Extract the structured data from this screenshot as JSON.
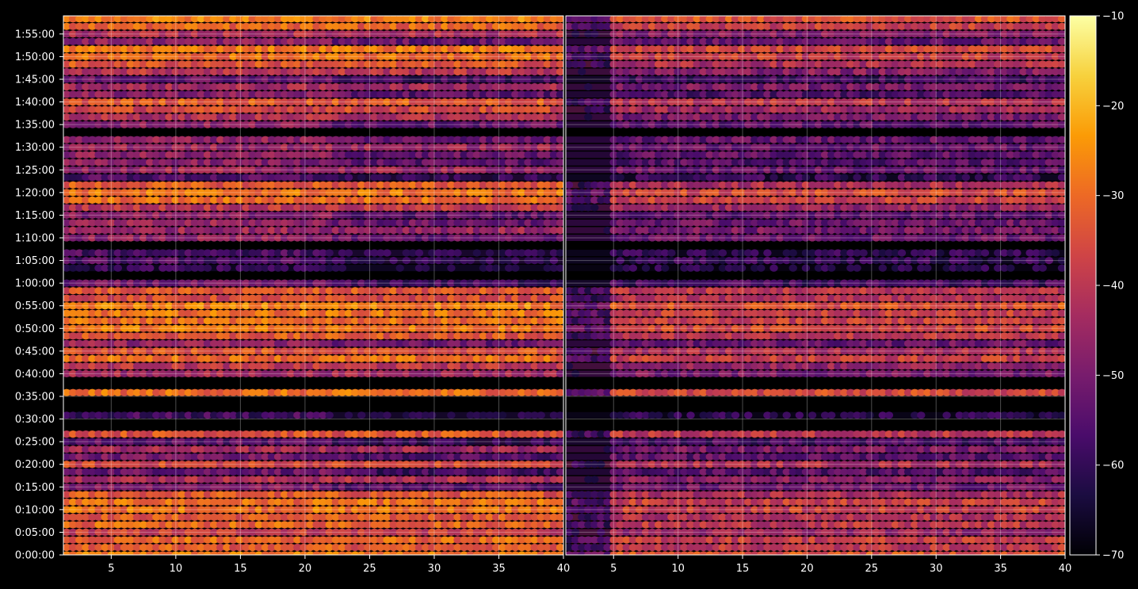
{
  "chart_data": [
    {
      "type": "heatmap",
      "panel": "left",
      "x_ticks": [
        5,
        10,
        15,
        20,
        25,
        30,
        35,
        40
      ],
      "y_ticks": [
        "0:00:00",
        "0:05:00",
        "0:10:00",
        "0:15:00",
        "0:20:00",
        "0:25:00",
        "0:30:00",
        "0:35:00",
        "0:40:00",
        "0:45:00",
        "0:50:00",
        "0:55:00",
        "1:00:00",
        "1:05:00",
        "1:10:00",
        "1:15:00",
        "1:20:00",
        "1:25:00",
        "1:30:00",
        "1:35:00",
        "1:40:00",
        "1:45:00",
        "1:50:00",
        "1:55:00"
      ],
      "xlim": [
        1.3,
        40
      ],
      "ylim_seconds": [
        0,
        7140
      ],
      "grid": true,
      "rows": [
        {
          "t": 0,
          "v": -28
        },
        {
          "t": 100,
          "v": -33
        },
        {
          "t": 200,
          "v": -31
        },
        {
          "t": 300,
          "v": -38
        },
        {
          "t": 400,
          "v": -31
        },
        {
          "t": 500,
          "v": -33
        },
        {
          "t": 600,
          "v": -29
        },
        {
          "t": 700,
          "v": -30
        },
        {
          "t": 800,
          "v": -33
        },
        {
          "t": 900,
          "v": -48
        },
        {
          "t": 1000,
          "v": -42
        },
        {
          "t": 1100,
          "v": -52
        },
        {
          "t": 1200,
          "v": -36
        },
        {
          "t": 1300,
          "v": -50
        },
        {
          "t": 1400,
          "v": -44
        },
        {
          "t": 1500,
          "v": -54
        },
        {
          "t": 1600,
          "v": -34
        },
        {
          "t": 1850,
          "v": -58
        },
        {
          "t": 2150,
          "v": -30
        },
        {
          "t": 2400,
          "v": -44
        },
        {
          "t": 2500,
          "v": -40
        },
        {
          "t": 2600,
          "v": -30
        },
        {
          "t": 2700,
          "v": -34
        },
        {
          "t": 2800,
          "v": -46
        },
        {
          "t": 2900,
          "v": -33
        },
        {
          "t": 3000,
          "v": -28
        },
        {
          "t": 3100,
          "v": -30
        },
        {
          "t": 3200,
          "v": -29
        },
        {
          "t": 3300,
          "v": -27
        },
        {
          "t": 3400,
          "v": -36
        },
        {
          "t": 3500,
          "v": -34
        },
        {
          "t": 3600,
          "v": -52
        },
        {
          "t": 3800,
          "v": -60
        },
        {
          "t": 3900,
          "v": -56
        },
        {
          "t": 4000,
          "v": -57
        },
        {
          "t": 4200,
          "v": -47
        },
        {
          "t": 4300,
          "v": -45
        },
        {
          "t": 4400,
          "v": -46
        },
        {
          "t": 4500,
          "v": -48
        },
        {
          "t": 4600,
          "v": -40
        },
        {
          "t": 4700,
          "v": -30
        },
        {
          "t": 4800,
          "v": -29
        },
        {
          "t": 4900,
          "v": -33
        },
        {
          "t": 5000,
          "v": -56
        },
        {
          "t": 5100,
          "v": -45
        },
        {
          "t": 5200,
          "v": -48
        },
        {
          "t": 5300,
          "v": -47
        },
        {
          "t": 5400,
          "v": -45
        },
        {
          "t": 5500,
          "v": -46
        },
        {
          "t": 5700,
          "v": -47
        },
        {
          "t": 5800,
          "v": -42
        },
        {
          "t": 5900,
          "v": -36
        },
        {
          "t": 6000,
          "v": -33
        },
        {
          "t": 6100,
          "v": -48
        },
        {
          "t": 6200,
          "v": -44
        },
        {
          "t": 6300,
          "v": -52
        },
        {
          "t": 6400,
          "v": -40
        },
        {
          "t": 6500,
          "v": -34
        },
        {
          "t": 6600,
          "v": -30
        },
        {
          "t": 6700,
          "v": -28
        },
        {
          "t": 6800,
          "v": -47
        },
        {
          "t": 6900,
          "v": -42
        },
        {
          "t": 7000,
          "v": -31
        },
        {
          "t": 7100,
          "v": -27
        }
      ]
    },
    {
      "type": "heatmap",
      "panel": "right",
      "x_ticks": [
        5,
        10,
        15,
        20,
        25,
        30,
        35,
        40
      ],
      "xlim": [
        1.3,
        40
      ],
      "grid": true,
      "rows": [
        {
          "t": 0,
          "v": -34
        },
        {
          "t": 100,
          "v": -40
        },
        {
          "t": 200,
          "v": -38
        },
        {
          "t": 300,
          "v": -45
        },
        {
          "t": 400,
          "v": -40
        },
        {
          "t": 500,
          "v": -42
        },
        {
          "t": 600,
          "v": -38
        },
        {
          "t": 700,
          "v": -38
        },
        {
          "t": 800,
          "v": -42
        },
        {
          "t": 900,
          "v": -52
        },
        {
          "t": 1000,
          "v": -48
        },
        {
          "t": 1100,
          "v": -55
        },
        {
          "t": 1200,
          "v": -42
        },
        {
          "t": 1300,
          "v": -54
        },
        {
          "t": 1400,
          "v": -50
        },
        {
          "t": 1500,
          "v": -57
        },
        {
          "t": 1600,
          "v": -40
        },
        {
          "t": 1850,
          "v": -62
        },
        {
          "t": 2150,
          "v": -36
        },
        {
          "t": 2400,
          "v": -50
        },
        {
          "t": 2500,
          "v": -46
        },
        {
          "t": 2600,
          "v": -38
        },
        {
          "t": 2700,
          "v": -42
        },
        {
          "t": 2800,
          "v": -52
        },
        {
          "t": 2900,
          "v": -40
        },
        {
          "t": 3000,
          "v": -36
        },
        {
          "t": 3100,
          "v": -38
        },
        {
          "t": 3200,
          "v": -38
        },
        {
          "t": 3300,
          "v": -34
        },
        {
          "t": 3400,
          "v": -42
        },
        {
          "t": 3500,
          "v": -40
        },
        {
          "t": 3600,
          "v": -58
        },
        {
          "t": 3800,
          "v": -63
        },
        {
          "t": 3900,
          "v": -60
        },
        {
          "t": 4000,
          "v": -61
        },
        {
          "t": 4200,
          "v": -52
        },
        {
          "t": 4300,
          "v": -50
        },
        {
          "t": 4400,
          "v": -52
        },
        {
          "t": 4500,
          "v": -54
        },
        {
          "t": 4600,
          "v": -46
        },
        {
          "t": 4700,
          "v": -38
        },
        {
          "t": 4800,
          "v": -36
        },
        {
          "t": 4900,
          "v": -42
        },
        {
          "t": 5000,
          "v": -60
        },
        {
          "t": 5100,
          "v": -52
        },
        {
          "t": 5200,
          "v": -55
        },
        {
          "t": 5300,
          "v": -54
        },
        {
          "t": 5400,
          "v": -52
        },
        {
          "t": 5500,
          "v": -53
        },
        {
          "t": 5700,
          "v": -54
        },
        {
          "t": 5800,
          "v": -50
        },
        {
          "t": 5900,
          "v": -44
        },
        {
          "t": 6000,
          "v": -40
        },
        {
          "t": 6100,
          "v": -55
        },
        {
          "t": 6200,
          "v": -50
        },
        {
          "t": 6300,
          "v": -58
        },
        {
          "t": 6400,
          "v": -48
        },
        {
          "t": 6500,
          "v": -42
        },
        {
          "t": 6600,
          "v": -38
        },
        {
          "t": 6700,
          "v": -36
        },
        {
          "t": 6800,
          "v": -53
        },
        {
          "t": 6900,
          "v": -48
        },
        {
          "t": 7000,
          "v": -38
        },
        {
          "t": 7100,
          "v": -34
        }
      ]
    }
  ],
  "colorbar": {
    "ticks": [
      -10,
      -20,
      -30,
      -40,
      -50,
      -60,
      -70
    ],
    "tick_labels": [
      "−10",
      "−20",
      "−30",
      "−40",
      "−50",
      "−60",
      "−70"
    ],
    "range": [
      -70,
      -10
    ],
    "colormap": "inferno",
    "colors": [
      "#000004",
      "#1b0c41",
      "#4a0c6b",
      "#781c6d",
      "#a52c60",
      "#cf4446",
      "#ed6925",
      "#fb9b06",
      "#f7d13d",
      "#fcffa4"
    ]
  },
  "x_tick_labels": [
    "5",
    "10",
    "15",
    "20",
    "25",
    "30",
    "35",
    "40"
  ]
}
